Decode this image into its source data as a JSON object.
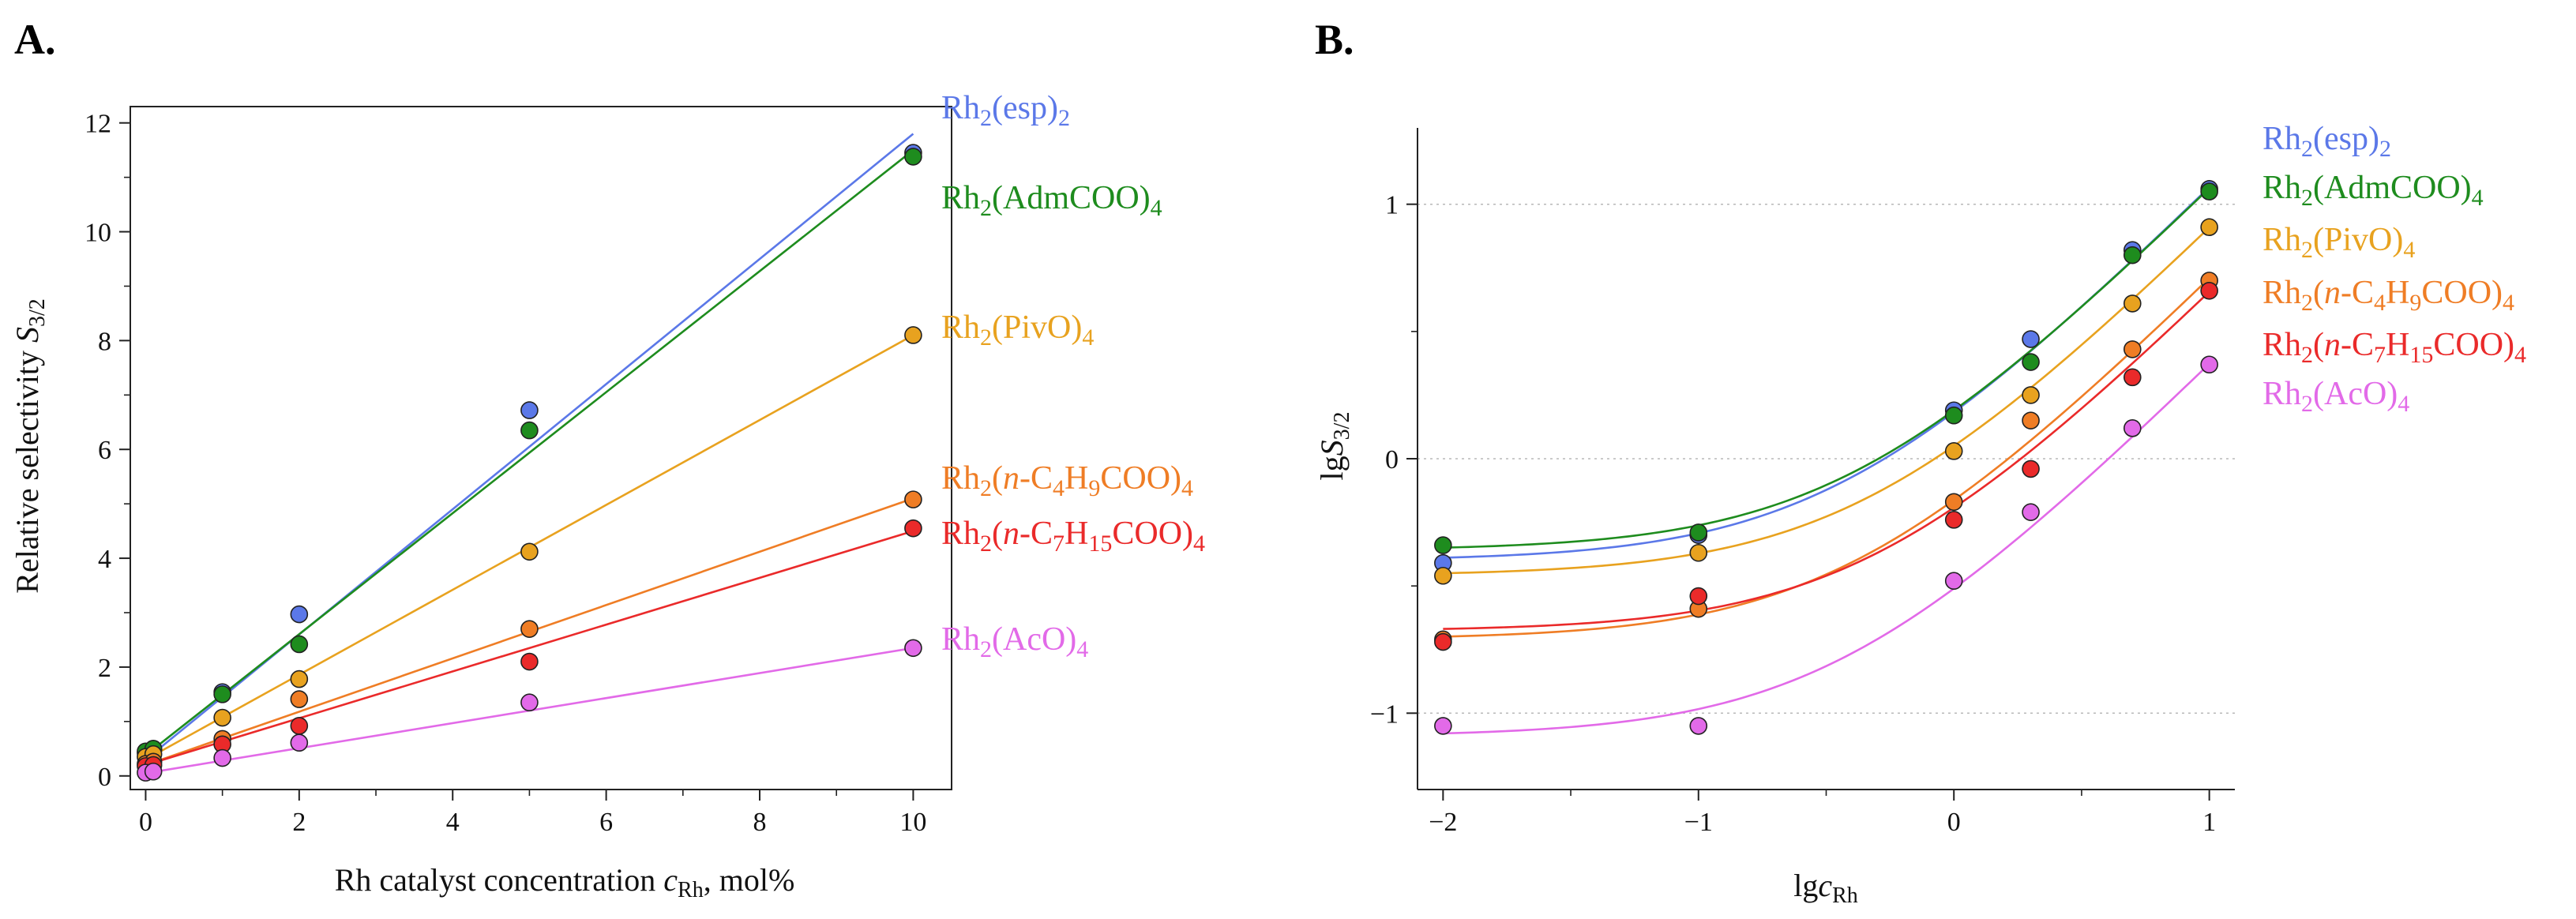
{
  "colors": {
    "esp": "#5b78e8",
    "adm": "#1e8c1e",
    "pivo": "#e8a21f",
    "c4": "#ef7d25",
    "c7": "#ea2a2a",
    "aco": "#e26ae8"
  },
  "chart_data": [
    {
      "panel": "A.",
      "type": "scatter",
      "xlabel_main": "Rh catalyst concentration ",
      "xlabel_var": "c",
      "xlabel_sub": "Rh",
      "xlabel_unit": ", mol%",
      "ylabel_main": "Relative selectivity ",
      "ylabel_var": "S",
      "ylabel_sub": "3/2",
      "xlim": [
        -0.2,
        10.5
      ],
      "ylim": [
        -0.25,
        12.3
      ],
      "xticks": [
        0,
        2,
        4,
        6,
        8,
        10
      ],
      "xtick_labels": [
        "0",
        "2",
        "4",
        "6",
        "8",
        "10"
      ],
      "yticks": [
        0,
        2,
        4,
        6,
        8,
        10,
        12
      ],
      "ytick_labels": [
        "0",
        "2",
        "4",
        "6",
        "8",
        "10",
        "12"
      ],
      "fit": "linear",
      "series": [
        {
          "key": "esp",
          "legend": "Rh₂(esp)₂",
          "x": [
            0,
            0.1,
            1,
            2,
            5,
            10
          ],
          "y": [
            0.42,
            0.48,
            1.54,
            2.97,
            6.72,
            11.45
          ],
          "fit_line": [
            [
              0,
              0.3
            ],
            [
              10,
              11.8
            ]
          ]
        },
        {
          "key": "adm",
          "legend": "Rh₂(AdmCOO)₄",
          "x": [
            0,
            0.1,
            1,
            2,
            5,
            10
          ],
          "y": [
            0.45,
            0.5,
            1.5,
            2.42,
            6.35,
            11.38
          ],
          "fit_line": [
            [
              0,
              0.38
            ],
            [
              10,
              11.5
            ]
          ]
        },
        {
          "key": "pivo",
          "legend": "Rh₂(PivO)₄",
          "x": [
            0,
            0.1,
            1,
            2,
            5,
            10
          ],
          "y": [
            0.35,
            0.4,
            1.07,
            1.78,
            4.12,
            8.1
          ],
          "fit_line": [
            [
              0,
              0.3
            ],
            [
              10,
              8.1
            ]
          ]
        },
        {
          "key": "c4",
          "legend": "Rh₂(n-C₄H₉COO)₄",
          "x": [
            0,
            0.1,
            1,
            2,
            5,
            10
          ],
          "y": [
            0.22,
            0.26,
            0.68,
            1.41,
            2.7,
            5.08
          ],
          "fit_line": [
            [
              0,
              0.2
            ],
            [
              10,
              5.1
            ]
          ]
        },
        {
          "key": "c7",
          "legend": "Rh₂(n-C₇H₁₅COO)₄",
          "x": [
            0,
            0.1,
            1,
            2,
            5,
            10
          ],
          "y": [
            0.18,
            0.2,
            0.58,
            0.92,
            2.1,
            4.55
          ],
          "fit_line": [
            [
              0,
              0.2
            ],
            [
              10,
              4.5
            ]
          ]
        },
        {
          "key": "aco",
          "legend": "Rh₂(AcO)₄",
          "x": [
            0,
            0.1,
            1,
            2,
            5,
            10
          ],
          "y": [
            0.06,
            0.08,
            0.33,
            0.61,
            1.35,
            2.35
          ],
          "fit_line": [
            [
              0,
              0.05
            ],
            [
              10,
              2.35
            ]
          ]
        }
      ]
    },
    {
      "panel": "B.",
      "type": "scatter",
      "xlabel_main": "lg",
      "xlabel_var": "c",
      "xlabel_sub": "Rh",
      "xlabel_unit": "",
      "ylabel_main": "lg",
      "ylabel_var": "S",
      "ylabel_sub": "3/2",
      "xlim": [
        -2.1,
        1.1
      ],
      "ylim": [
        -1.3,
        1.3
      ],
      "xticks": [
        -2,
        -1,
        0,
        1
      ],
      "xtick_labels": [
        "−2",
        "−1",
        "0",
        "1"
      ],
      "yticks": [
        -1,
        0,
        1
      ],
      "ytick_labels": [
        "−1",
        "0",
        "1"
      ],
      "grid": "horizontal dotted",
      "fit": "log(a + b·10^x)",
      "series": [
        {
          "key": "esp",
          "legend": "Rh₂(esp)₂",
          "x": [
            -2,
            -1,
            0,
            0.301,
            0.699,
            1
          ],
          "y": [
            -0.41,
            -0.3,
            0.19,
            0.47,
            0.82,
            1.06
          ],
          "fit_ab": [
            0.397,
            1.128
          ]
        },
        {
          "key": "adm",
          "legend": "Rh₂(AdmCOO)₄",
          "x": [
            -2,
            -1,
            0,
            0.301,
            0.699,
            1
          ],
          "y": [
            -0.34,
            -0.29,
            0.17,
            0.38,
            0.8,
            1.05
          ],
          "fit_ab": [
            0.436,
            1.113
          ]
        },
        {
          "key": "pivo",
          "legend": "Rh₂(PivO)₄",
          "x": [
            -2,
            -1,
            0,
            0.301,
            0.699,
            1
          ],
          "y": [
            -0.46,
            -0.37,
            0.03,
            0.25,
            0.61,
            0.91
          ],
          "fit_ab": [
            0.347,
            0.776
          ]
        },
        {
          "key": "c4",
          "legend": "Rh₂(n-C₄H₉COO)₄",
          "x": [
            -2,
            -1,
            0,
            0.301,
            0.699,
            1
          ],
          "y": [
            -0.71,
            -0.59,
            -0.17,
            0.15,
            0.43,
            0.7
          ],
          "fit_ab": [
            0.195,
            0.493
          ]
        },
        {
          "key": "c7",
          "legend": "Rh₂(n-C₇H₁₅COO)₄",
          "x": [
            -2,
            -1,
            0,
            0.301,
            0.699,
            1
          ],
          "y": [
            -0.72,
            -0.54,
            -0.24,
            -0.04,
            0.32,
            0.66
          ],
          "fit_ab": [
            0.21,
            0.432
          ]
        },
        {
          "key": "aco",
          "legend": "Rh₂(AcO)₄",
          "x": [
            -2,
            -1,
            0,
            0.301,
            0.699,
            1
          ],
          "y": [
            -1.05,
            -1.05,
            -0.48,
            -0.21,
            0.12,
            0.37
          ],
          "fit_ab": [
            0.081,
            0.228
          ]
        }
      ]
    }
  ]
}
